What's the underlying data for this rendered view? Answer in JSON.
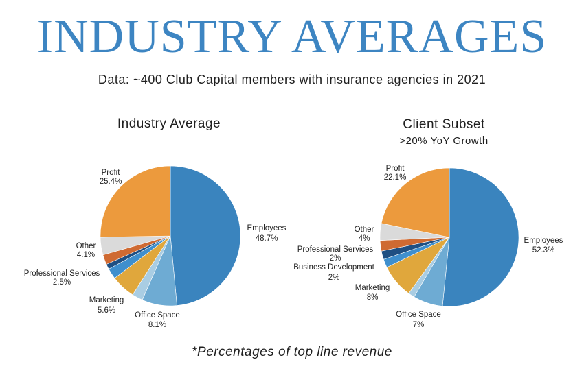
{
  "header": {
    "title": "INDUSTRY AVERAGES",
    "subtitle": "Data: ~400 Club Capital members with insurance agencies in 2021"
  },
  "footnote": "*Percentages of top line revenue",
  "chart_data": [
    {
      "type": "pie",
      "title": "Industry Average",
      "subtitle": "",
      "slices": [
        {
          "name": "Employees",
          "value": 48.7,
          "label": "48.7%",
          "color": "#3a84be"
        },
        {
          "name": "Office Space",
          "value": 8.1,
          "label": "8.1%",
          "color": "#6eabd3"
        },
        {
          "name": "",
          "value": 2.5,
          "label": "",
          "color": "#a9cde3"
        },
        {
          "name": "Marketing",
          "value": 5.6,
          "label": "5.6%",
          "color": "#e0a73c"
        },
        {
          "name": "",
          "value": 0.0,
          "label": "",
          "color": "#2d6ea8"
        },
        {
          "name": "Professional Services",
          "value": 2.5,
          "label": "2.5%",
          "color": "#3f8fcd"
        },
        {
          "name": "",
          "value": 1.2,
          "label": "",
          "color": "#1f4f82"
        },
        {
          "name": "",
          "value": 2.3,
          "label": "",
          "color": "#cf6a32"
        },
        {
          "name": "Other",
          "value": 4.1,
          "label": "4.1%",
          "color": "#dadada"
        },
        {
          "name": "Profit",
          "value": 25.4,
          "label": "25.4%",
          "color": "#ec9a3d"
        }
      ]
    },
    {
      "type": "pie",
      "title": "Client Subset",
      "subtitle": ">20% YoY Growth",
      "slices": [
        {
          "name": "Employees",
          "value": 52.3,
          "label": "52.3%",
          "color": "#3a84be"
        },
        {
          "name": "Office Space",
          "value": 7,
          "label": "7%",
          "color": "#6eabd3"
        },
        {
          "name": "",
          "value": 1.5,
          "label": "",
          "color": "#a9cde3"
        },
        {
          "name": "Marketing",
          "value": 8,
          "label": "8%",
          "color": "#e0a73c"
        },
        {
          "name": "Business Development",
          "value": 2,
          "label": "2%",
          "color": "#3f8fcd"
        },
        {
          "name": "Professional Services",
          "value": 2,
          "label": "2%",
          "color": "#1f4f82"
        },
        {
          "name": "",
          "value": 2.5,
          "label": "",
          "color": "#cf6a32"
        },
        {
          "name": "Other",
          "value": 4,
          "label": "4%",
          "color": "#dadada"
        },
        {
          "name": "Profit",
          "value": 22.1,
          "label": "22.1%",
          "color": "#ec9a3d"
        }
      ]
    }
  ]
}
